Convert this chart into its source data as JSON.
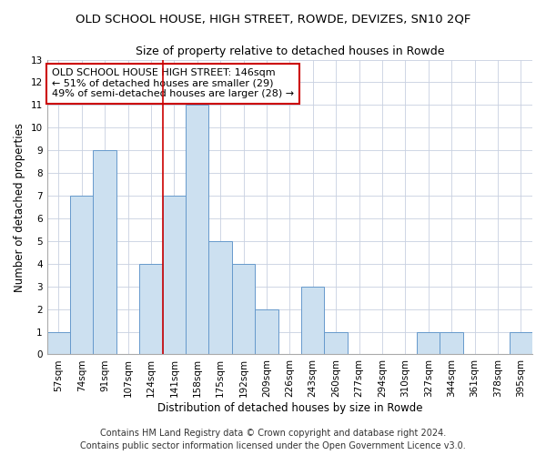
{
  "title": "OLD SCHOOL HOUSE, HIGH STREET, ROWDE, DEVIZES, SN10 2QF",
  "subtitle": "Size of property relative to detached houses in Rowde",
  "xlabel": "Distribution of detached houses by size in Rowde",
  "ylabel": "Number of detached properties",
  "categories": [
    "57sqm",
    "74sqm",
    "91sqm",
    "107sqm",
    "124sqm",
    "141sqm",
    "158sqm",
    "175sqm",
    "192sqm",
    "209sqm",
    "226sqm",
    "243sqm",
    "260sqm",
    "277sqm",
    "294sqm",
    "310sqm",
    "327sqm",
    "344sqm",
    "361sqm",
    "378sqm",
    "395sqm"
  ],
  "values": [
    1,
    7,
    9,
    0,
    4,
    7,
    11,
    5,
    4,
    2,
    0,
    3,
    1,
    0,
    0,
    0,
    1,
    1,
    0,
    0,
    1
  ],
  "bar_color": "#cce0f0",
  "bar_edge_color": "#6699cc",
  "highlight_index": 5,
  "highlight_line_color": "#cc0000",
  "annotation_text": "OLD SCHOOL HOUSE HIGH STREET: 146sqm\n← 51% of detached houses are smaller (29)\n49% of semi-detached houses are larger (28) →",
  "annotation_box_color": "#ffffff",
  "annotation_box_edge": "#cc0000",
  "ylim": [
    0,
    13
  ],
  "yticks": [
    0,
    1,
    2,
    3,
    4,
    5,
    6,
    7,
    8,
    9,
    10,
    11,
    12,
    13
  ],
  "footer1": "Contains HM Land Registry data © Crown copyright and database right 2024.",
  "footer2": "Contains public sector information licensed under the Open Government Licence v3.0.",
  "title_fontsize": 9.5,
  "subtitle_fontsize": 9,
  "axis_label_fontsize": 8.5,
  "tick_fontsize": 7.5,
  "annotation_fontsize": 8,
  "footer_fontsize": 7,
  "background_color": "#ffffff",
  "grid_color": "#c8d0e0"
}
